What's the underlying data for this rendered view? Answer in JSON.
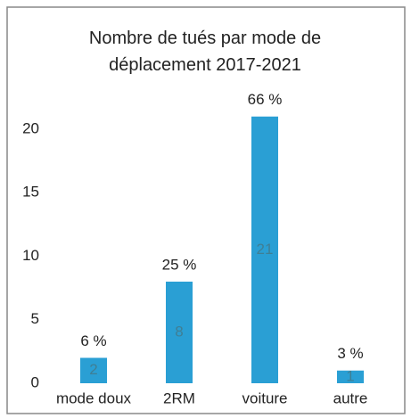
{
  "chart_data": {
    "type": "bar",
    "title": "Nombre de tués par mode de déplacement 2017-2021",
    "categories": [
      "mode doux",
      "2RM",
      "voiture",
      "autre"
    ],
    "values": [
      2,
      8,
      21,
      1
    ],
    "annotations": [
      "6 %",
      "25 %",
      "66 %",
      "3 %"
    ],
    "color": "#2a9fd4",
    "ylim": [
      0,
      22
    ],
    "yticks": [
      0,
      5,
      10,
      15,
      20
    ],
    "grid": false
  }
}
